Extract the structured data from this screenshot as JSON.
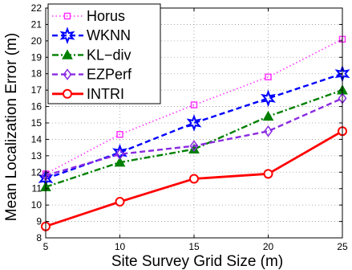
{
  "chart_data": {
    "type": "line",
    "xlabel": "Site Survey Grid Size (m)",
    "ylabel": "Mean Localization Error (m)",
    "xlim": [
      5,
      25
    ],
    "ylim": [
      8,
      22
    ],
    "xticks": [
      5,
      10,
      15,
      20,
      25
    ],
    "yticks": [
      8,
      9,
      10,
      11,
      12,
      13,
      14,
      15,
      16,
      17,
      18,
      19,
      20,
      21,
      22
    ],
    "grid": true,
    "legend_position": "top-left",
    "x": [
      5,
      10,
      15,
      20,
      25
    ],
    "series": [
      {
        "name": "Horus",
        "values": [
          11.9,
          14.3,
          16.1,
          17.8,
          20.1
        ],
        "color": "#ff33ff",
        "line_style": "dotted",
        "marker": "square"
      },
      {
        "name": "WKNN",
        "values": [
          11.6,
          13.2,
          15.0,
          16.5,
          18.0
        ],
        "color": "#0000ff",
        "line_style": "dashed",
        "marker": "hexagram"
      },
      {
        "name": "KL−div",
        "values": [
          11.1,
          12.6,
          13.4,
          15.4,
          17.0
        ],
        "color": "#008000",
        "line_style": "dashdot",
        "marker": "triangle"
      },
      {
        "name": "EZPerf",
        "values": [
          11.8,
          13.1,
          13.6,
          14.5,
          16.5
        ],
        "color": "#8a2be2",
        "line_style": "dashed",
        "marker": "diamond"
      },
      {
        "name": "INTRI",
        "values": [
          8.7,
          10.2,
          11.6,
          11.9,
          14.5
        ],
        "color": "#ff0000",
        "line_style": "solid",
        "marker": "circle"
      }
    ]
  }
}
